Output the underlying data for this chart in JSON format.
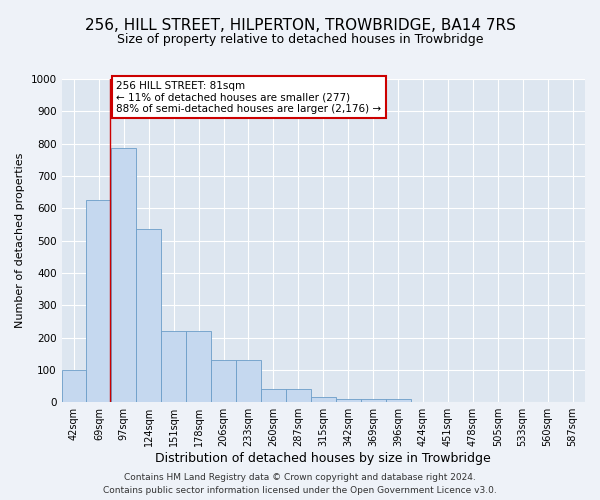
{
  "title": "256, HILL STREET, HILPERTON, TROWBRIDGE, BA14 7RS",
  "subtitle": "Size of property relative to detached houses in Trowbridge",
  "xlabel": "Distribution of detached houses by size in Trowbridge",
  "ylabel": "Number of detached properties",
  "categories": [
    "42sqm",
    "69sqm",
    "97sqm",
    "124sqm",
    "151sqm",
    "178sqm",
    "206sqm",
    "233sqm",
    "260sqm",
    "287sqm",
    "315sqm",
    "342sqm",
    "369sqm",
    "396sqm",
    "424sqm",
    "451sqm",
    "478sqm",
    "505sqm",
    "533sqm",
    "560sqm",
    "587sqm"
  ],
  "values": [
    100,
    625,
    785,
    535,
    220,
    220,
    130,
    130,
    40,
    40,
    15,
    10,
    10,
    10,
    0,
    0,
    0,
    0,
    0,
    0,
    0
  ],
  "bar_color": "#c5d8ef",
  "bar_edge_color": "#6b9dc8",
  "annotation_text": "256 HILL STREET: 81sqm\n← 11% of detached houses are smaller (277)\n88% of semi-detached houses are larger (2,176) →",
  "annotation_box_color": "#ffffff",
  "annotation_box_edge_color": "#cc0000",
  "ylim": [
    0,
    1000
  ],
  "yticks": [
    0,
    100,
    200,
    300,
    400,
    500,
    600,
    700,
    800,
    900,
    1000
  ],
  "footer_line1": "Contains HM Land Registry data © Crown copyright and database right 2024.",
  "footer_line2": "Contains public sector information licensed under the Open Government Licence v3.0.",
  "bg_color": "#eef2f8",
  "plot_bg_color": "#dde6f0",
  "grid_color": "#ffffff",
  "red_line_color": "#cc0000",
  "title_fontsize": 11,
  "subtitle_fontsize": 9,
  "ylabel_fontsize": 8,
  "xlabel_fontsize": 9,
  "tick_fontsize": 7.5,
  "annotation_fontsize": 7.5,
  "footer_fontsize": 6.5
}
